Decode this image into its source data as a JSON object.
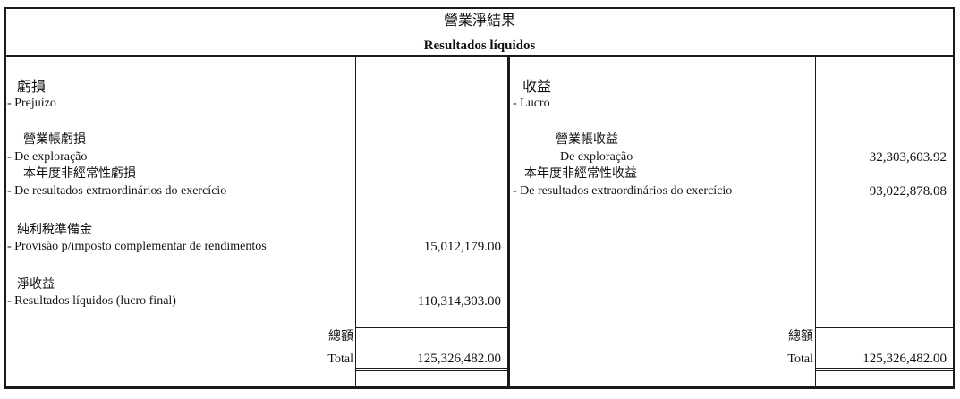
{
  "header": {
    "title_zh": "營業淨結果",
    "title_pt": "Resultados líquidos"
  },
  "left": {
    "heading_zh": "虧損",
    "heading_pt": "- Prejuízo",
    "rows": [
      {
        "zh": "營業帳虧損",
        "pt": "- De exploração",
        "amount": ""
      },
      {
        "zh": "本年度非經常性虧損",
        "pt": "- De resultados extraordinários do exercício",
        "amount": ""
      },
      {
        "zh": "純利稅準備金",
        "pt": "- Provisão p/imposto complementar de rendimentos",
        "amount": "15,012,179.00"
      },
      {
        "zh": "淨收益",
        "pt": "- Resultados líquidos (lucro final)",
        "amount": "110,314,303.00"
      }
    ],
    "total_zh": "總額",
    "total_pt": "Total",
    "total": "125,326,482.00"
  },
  "right": {
    "heading_zh": "收益",
    "heading_pt": "- Lucro",
    "rows": [
      {
        "zh": "營業帳收益",
        "pt": "De exploração",
        "amount": "32,303,603.92"
      },
      {
        "zh": "本年度非經常性收益",
        "pt": "- De resultados extraordinários do exercício",
        "amount": "93,022,878.08"
      }
    ],
    "total_zh": "總額",
    "total_pt": "Total",
    "total": "125,326,482.00"
  }
}
